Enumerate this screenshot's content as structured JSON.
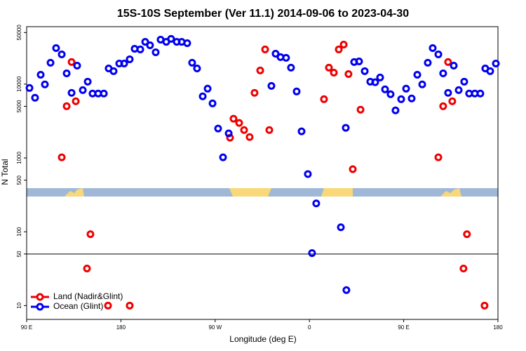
{
  "chart_data": {
    "type": "scatter",
    "title": "15S-10S September (Ver 11.1)   2014-09-06 to 2023-04-30",
    "xlabel": "Longitude (deg E)",
    "ylabel": "N Total",
    "xlim": [
      90,
      540
    ],
    "xticks": [
      {
        "value": 90,
        "label": "90 E"
      },
      180,
      {
        "value": 270,
        "label": "90 W"
      },
      {
        "value": 360,
        "label": "0"
      },
      {
        "value": 450,
        "label": "90 E"
      },
      {
        "value": 540,
        "label": "180"
      }
    ],
    "ylim": [
      6.5,
      60000
    ],
    "yscale": "log",
    "yticks": [
      10,
      50,
      100,
      500,
      1000,
      5000,
      10000,
      50000
    ],
    "hline": 50,
    "legend": "lower left",
    "grid": false,
    "series": [
      {
        "name": "Land (Nadir&Glint)",
        "color": "#ee0000",
        "x": [
          123.5,
          128.2,
          132.9,
          136.9,
          147.6,
          150.9,
          167.7,
          188.4,
          284.2,
          287.5,
          292.9,
          297.6,
          302.9,
          307.6,
          313.0,
          317.7,
          321.7,
          373.9,
          378.6,
          383.3,
          388.0,
          392.7,
          397.3,
          401.4,
          408.8,
          483.1,
          487.7,
          492.4,
          496.4,
          507.1,
          510.4,
          527.2
        ],
        "values": [
          1020,
          5020,
          19900,
          5860,
          31.8,
          92.7,
          10,
          10,
          1880,
          3400,
          2980,
          2390,
          1920,
          7620,
          15300,
          29500,
          2390,
          6250,
          16700,
          14300,
          29500,
          34300,
          13700,
          705,
          4510,
          1020,
          5020,
          19900,
          5860,
          31.8,
          92.7,
          10
        ]
      },
      {
        "name": "Ocean (Glint)",
        "color": "#0000ee",
        "x": [
          92.7,
          98.0,
          103.4,
          107.4,
          112.8,
          118.1,
          123.5,
          128.2,
          132.9,
          138.2,
          143.6,
          148.3,
          152.9,
          158.3,
          163.7,
          168.3,
          173.0,
          178.4,
          183.1,
          188.4,
          193.1,
          198.5,
          203.2,
          207.8,
          213.2,
          217.9,
          223.3,
          227.9,
          233.3,
          238.0,
          243.3,
          248.0,
          252.7,
          258.1,
          262.8,
          267.5,
          272.8,
          277.5,
          282.9,
          323.7,
          327.7,
          332.4,
          337.7,
          342.4,
          347.8,
          352.5,
          358.5,
          362.5,
          366.5,
          390.0,
          394.7,
          395.3,
          402.7,
          407.4,
          412.8,
          418.1,
          422.8,
          427.5,
          432.2,
          437.5,
          442.2,
          447.6,
          452.3,
          457.6,
          463.0,
          467.7,
          473.0,
          477.7,
          483.1,
          487.7,
          492.4,
          497.8,
          502.5,
          507.8,
          512.5,
          517.9,
          523.2,
          527.9,
          532.6,
          538.0
        ],
        "values": [
          8870,
          6530,
          13400,
          9900,
          19500,
          30800,
          25300,
          14000,
          7620,
          17800,
          8300,
          10800,
          7450,
          7450,
          7450,
          16300,
          15000,
          19000,
          19000,
          21700,
          30100,
          29500,
          37400,
          33600,
          27000,
          40000,
          37400,
          41000,
          37400,
          37400,
          35900,
          19500,
          16300,
          6830,
          8680,
          5480,
          2500,
          1020,
          2150,
          9460,
          25800,
          23200,
          22700,
          16700,
          7950,
          2290,
          605,
          51.4,
          242,
          115,
          2560,
          16.2,
          19900,
          20300,
          15000,
          10800,
          10600,
          12300,
          8490,
          7290,
          4410,
          6250,
          8680,
          6400,
          13400,
          9900,
          19500,
          30800,
          25300,
          14000,
          7620,
          17800,
          8300,
          10800,
          7450,
          7450,
          7450,
          16300,
          15000,
          19000
        ]
      }
    ]
  }
}
